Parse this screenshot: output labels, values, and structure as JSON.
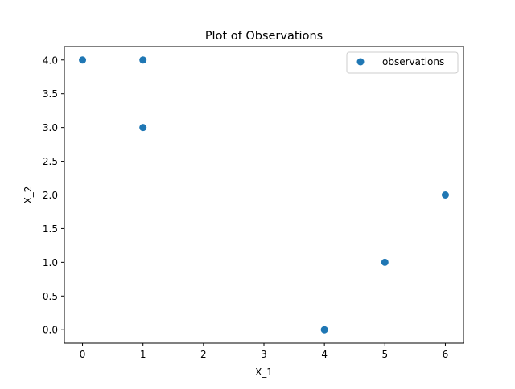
{
  "chart_data": {
    "type": "scatter",
    "title": "Plot of Observations",
    "xlabel": "X_1",
    "ylabel": "X_2",
    "xlim": [
      -0.3,
      6.3
    ],
    "ylim": [
      -0.2,
      4.2
    ],
    "xticks": [
      0,
      1,
      2,
      3,
      4,
      5,
      6
    ],
    "xtick_labels": [
      "0",
      "1",
      "2",
      "3",
      "4",
      "5",
      "6"
    ],
    "yticks": [
      0.0,
      0.5,
      1.0,
      1.5,
      2.0,
      2.5,
      3.0,
      3.5,
      4.0
    ],
    "ytick_labels": [
      "0.0",
      "0.5",
      "1.0",
      "1.5",
      "2.0",
      "2.5",
      "3.0",
      "3.5",
      "4.0"
    ],
    "grid": false,
    "legend_position": "top-right",
    "series": [
      {
        "name": "observations",
        "color": "#1f77b4",
        "x": [
          0,
          1,
          1,
          4,
          5,
          6
        ],
        "y": [
          4,
          4,
          3,
          0,
          1,
          2
        ]
      }
    ]
  }
}
